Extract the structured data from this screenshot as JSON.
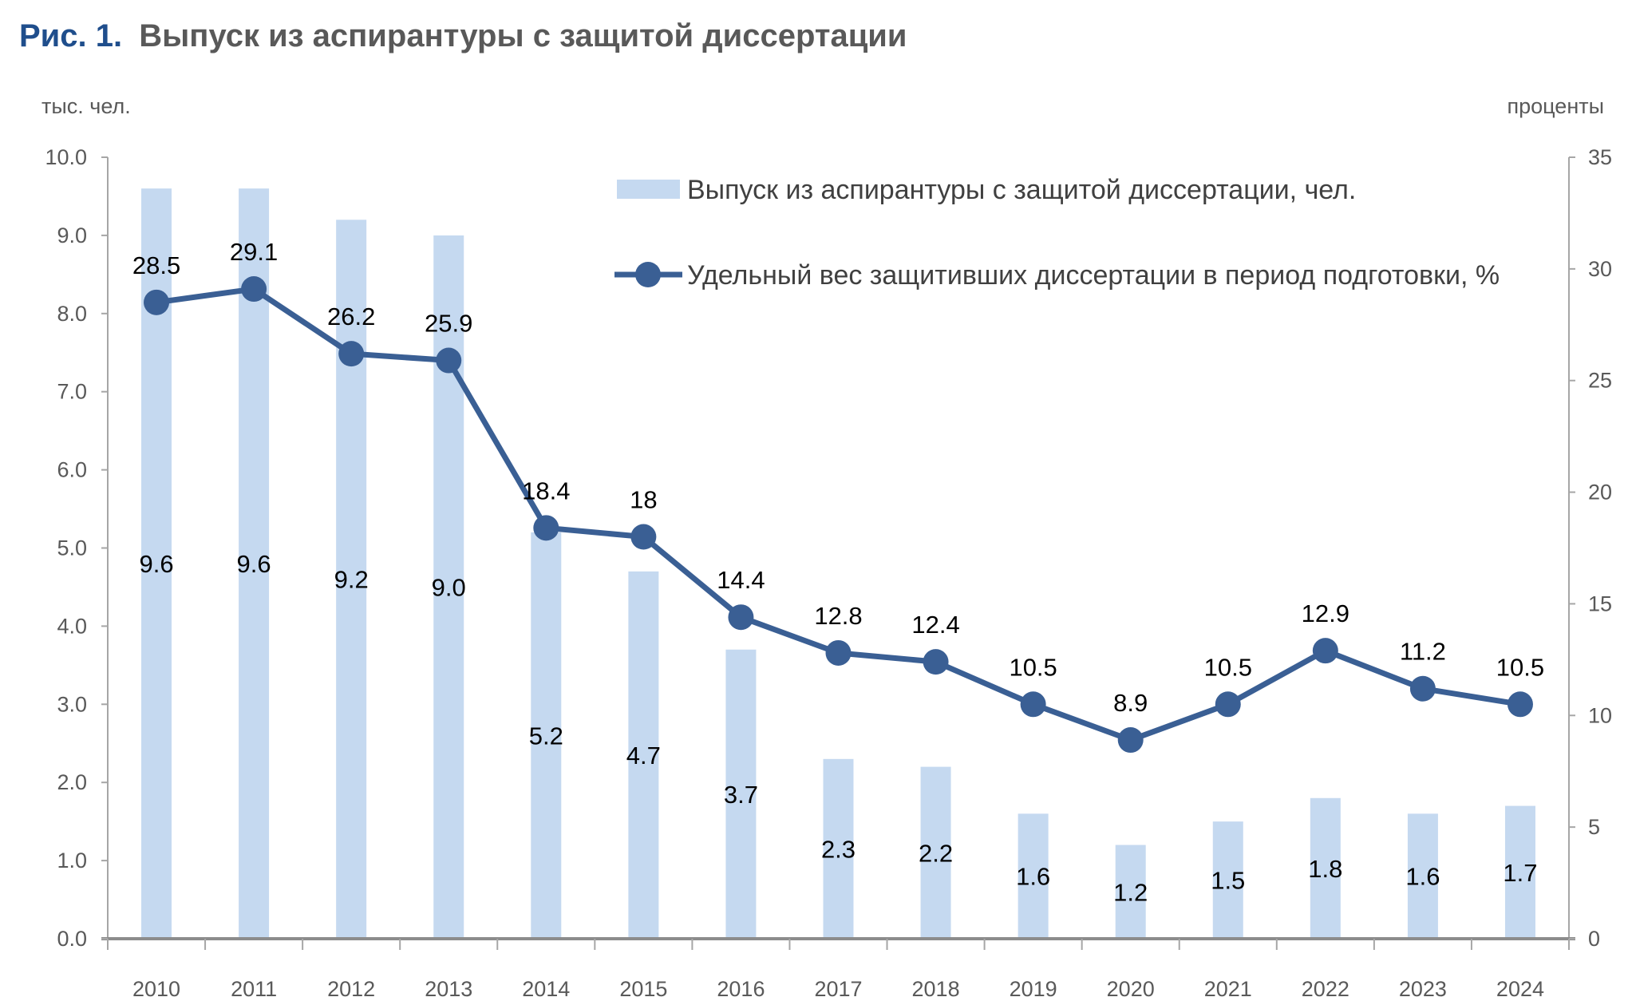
{
  "title": {
    "prefix": "Рис. 1.",
    "text": "Выпуск из аспирантуры с защитой диссертации"
  },
  "colors": {
    "bars": "#c5d9f0",
    "line": "#3a5f94",
    "title_prefix": "#1f4e8c",
    "title_text": "#595959"
  },
  "chart_data": {
    "type": "bar+line",
    "categories": [
      "2010",
      "2011",
      "2012",
      "2013",
      "2014",
      "2015",
      "2016",
      "2017",
      "2018",
      "2019",
      "2020",
      "2021",
      "2022",
      "2023",
      "2024"
    ],
    "series": [
      {
        "name": "Выпуск из аспирантуры с защитой диссертации, чел.",
        "type": "bar",
        "axis": "left",
        "values": [
          9.6,
          9.6,
          9.2,
          9.0,
          5.2,
          4.7,
          3.7,
          2.3,
          2.2,
          1.6,
          1.2,
          1.5,
          1.8,
          1.6,
          1.7
        ],
        "labels": [
          "9.6",
          "9.6",
          "9.2",
          "9.0",
          "5.2",
          "4.7",
          "3.7",
          "2.3",
          "2.2",
          "1.6",
          "1.2",
          "1.5",
          "1.8",
          "1.6",
          "1.7"
        ]
      },
      {
        "name": "Удельный вес защитивших диссертации в период подготовки, %",
        "type": "line",
        "axis": "right",
        "values": [
          28.5,
          29.1,
          26.2,
          25.9,
          18.4,
          18,
          14.4,
          12.8,
          12.4,
          10.5,
          8.9,
          10.5,
          12.9,
          11.2,
          10.5
        ],
        "labels": [
          "28.5",
          "29.1",
          "26.2",
          "25.9",
          "18.4",
          "18",
          "14.4",
          "12.8",
          "12.4",
          "10.5",
          "8.9",
          "10.5",
          "12.9",
          "11.2",
          "10.5"
        ]
      }
    ],
    "ylabel": "тыс. чел.",
    "y2label": "проценты",
    "ylim": [
      0,
      10
    ],
    "y2lim": [
      0,
      35
    ],
    "yticks": [
      "0.0",
      "1.0",
      "2.0",
      "3.0",
      "4.0",
      "5.0",
      "6.0",
      "7.0",
      "8.0",
      "9.0",
      "10.0"
    ],
    "y2ticks": [
      "0",
      "5",
      "10",
      "15",
      "20",
      "25",
      "30",
      "35"
    ],
    "legend_position": "top-right",
    "grid": false
  }
}
